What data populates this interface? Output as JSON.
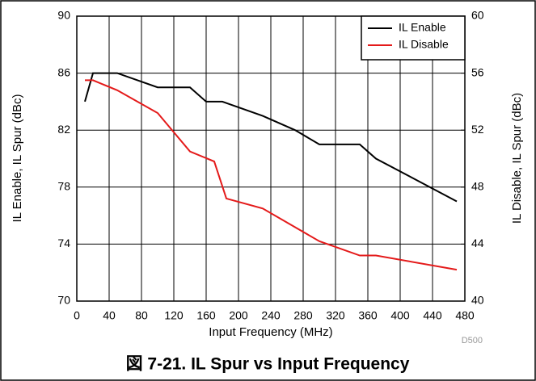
{
  "chart_data": {
    "type": "line",
    "title": "図 7-21. IL Spur vs Input Frequency",
    "xlabel": "Input Frequency (MHz)",
    "ylabel": "IL Enable, IL Spur (dBc)",
    "y2label": "IL Disable, IL Spur (dBc)",
    "annotation": "D500",
    "xlim": [
      0,
      480
    ],
    "xticks": [
      0,
      40,
      80,
      120,
      160,
      200,
      240,
      280,
      320,
      360,
      400,
      440,
      480
    ],
    "ylim": [
      70,
      90
    ],
    "yticks": [
      70,
      74,
      78,
      82,
      86,
      90
    ],
    "y2lim": [
      40,
      60
    ],
    "y2ticks": [
      40,
      44,
      48,
      52,
      56,
      60
    ],
    "grid": true,
    "legend": "upper right",
    "series": [
      {
        "name": "IL Enable",
        "color": "#000000",
        "x": [
          10,
          20,
          50,
          100,
          140,
          160,
          180,
          230,
          270,
          300,
          350,
          370,
          470
        ],
        "values": [
          84,
          86,
          86,
          85,
          85,
          84,
          84,
          83,
          82,
          81,
          81,
          80,
          77
        ]
      },
      {
        "name": "IL Disable",
        "color": "#e41a1a",
        "axis": "y2",
        "x": [
          10,
          20,
          50,
          100,
          140,
          170,
          185,
          230,
          300,
          350,
          370,
          470
        ],
        "values": [
          55.5,
          55.5,
          54.8,
          53.2,
          50.5,
          49.8,
          47.2,
          46.5,
          44.2,
          43.2,
          43.2,
          42.2
        ]
      }
    ]
  }
}
